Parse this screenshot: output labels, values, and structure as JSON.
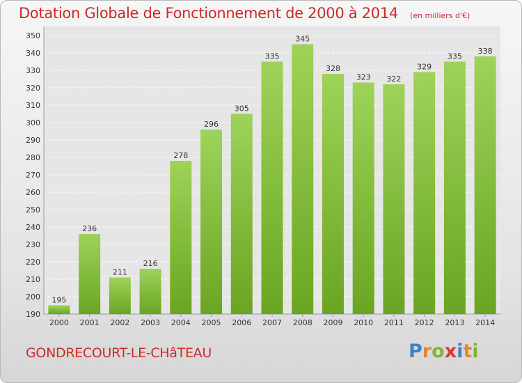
{
  "header": {
    "title": "Dotation Globale de Fonctionnement de 2000 à 2014",
    "unit": "(en milliers d'€)"
  },
  "footer": {
    "commune": "GONDRECOURT-LE-CHâTEAU",
    "logo_text": "Proxiti"
  },
  "colors": {
    "title": "#cc2a2a",
    "bar_top": "#9ed35a",
    "bar_bottom": "#6aa522",
    "grid": "#ffffff",
    "plot_bg": "#e6e6e6"
  },
  "chart_data": {
    "type": "bar",
    "categories": [
      "2000",
      "2001",
      "2002",
      "2003",
      "2004",
      "2005",
      "2006",
      "2007",
      "2008",
      "2009",
      "2010",
      "2011",
      "2012",
      "2013",
      "2014"
    ],
    "values": [
      195,
      236,
      211,
      216,
      278,
      296,
      305,
      335,
      345,
      328,
      323,
      322,
      329,
      335,
      338
    ],
    "ylim": [
      190,
      350
    ],
    "yticks": [
      190,
      200,
      210,
      220,
      230,
      240,
      250,
      260,
      270,
      280,
      290,
      300,
      310,
      320,
      330,
      340,
      350
    ],
    "grid": true,
    "data_labels": true
  }
}
